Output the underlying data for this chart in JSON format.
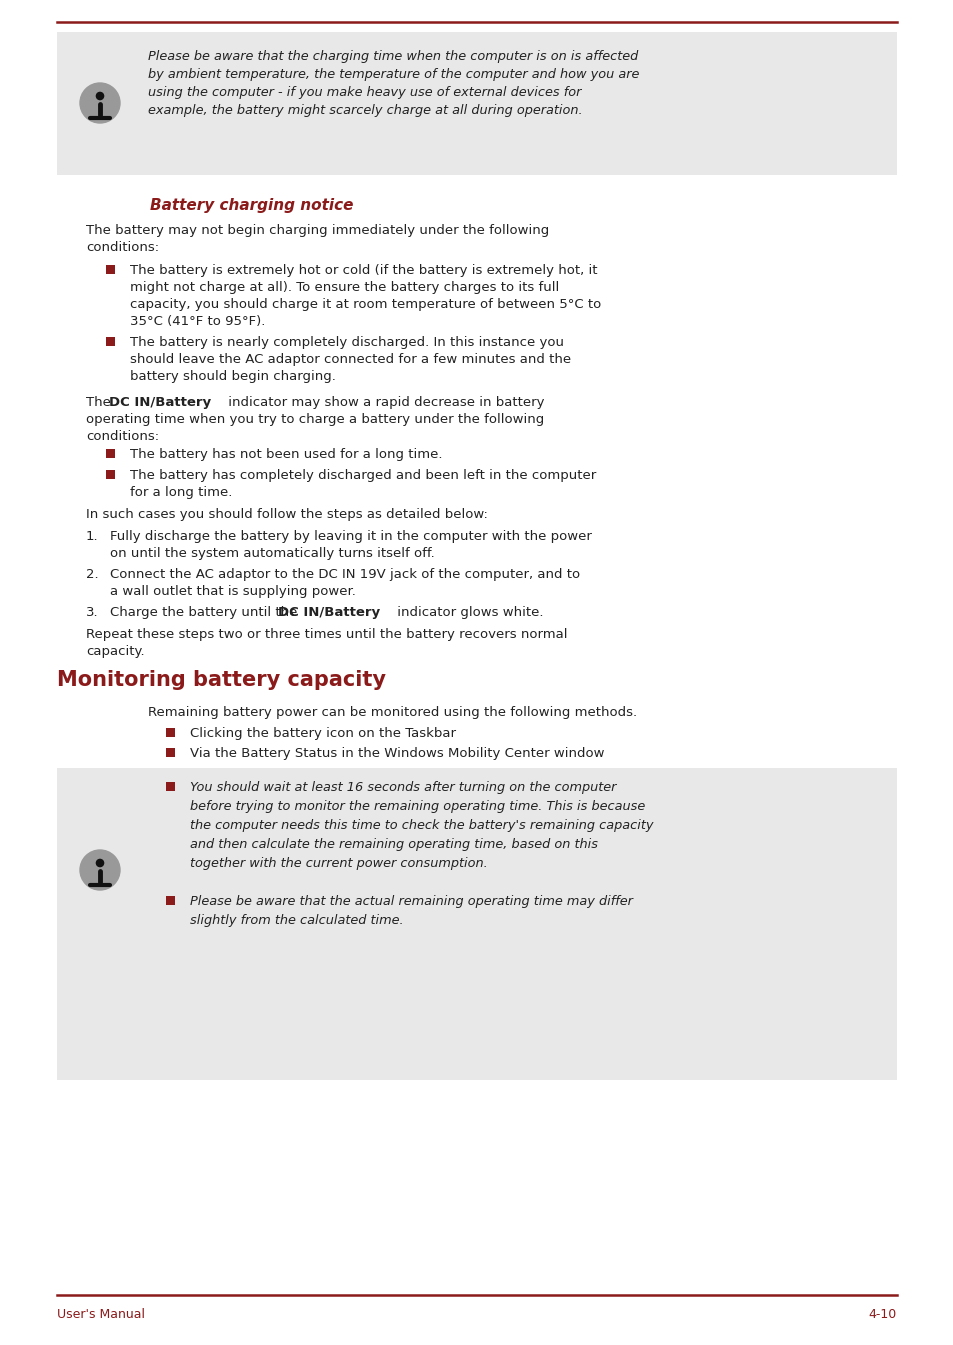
{
  "bg_color": "#ffffff",
  "top_line_color": "#8b1a1a",
  "footer_line_color": "#8b1a1a",
  "footer_left": "User's Manual",
  "footer_right": "4-10",
  "footer_color": "#8b1a1a",
  "section_title": "Battery charging notice",
  "section_title_color": "#8b1a1a",
  "main_section_title": "Monitoring battery capacity",
  "main_section_title_color": "#8b1a1a",
  "bullet_color": "#8b1a1a",
  "text_color": "#222222",
  "info_box_bg": "#e8e8e8",
  "info_icon_color": "#999999",
  "top_note_lines": [
    "Please be aware that the charging time when the computer is on is affected",
    "by ambient temperature, the temperature of the computer and how you are",
    "using the computer - if you make heavy use of external devices for",
    "example, the battery might scarcely charge at all during operation."
  ],
  "bullet1_lines": [
    "The battery is extremely hot or cold (if the battery is extremely hot, it",
    "might not charge at all). To ensure the battery charges to its full",
    "capacity, you should charge it at room temperature of between 5°C to",
    "35°C (41°F to 95°F)."
  ],
  "bullet2_lines": [
    "The battery is nearly completely discharged. In this instance you",
    "should leave the AC adaptor connected for a few minutes and the",
    "battery should begin charging."
  ],
  "bullet3": "The battery has not been used for a long time.",
  "bullet4_lines": [
    "The battery has completely discharged and been left in the computer",
    "for a long time."
  ],
  "numbered1_lines": [
    "Fully discharge the battery by leaving it in the computer with the power",
    "on until the system automatically turns itself off."
  ],
  "numbered2_lines": [
    "Connect the AC adaptor to the DC IN 19V jack of the computer, and to",
    "a wall outlet that is supplying power."
  ],
  "monitoring_bullet1": "Clicking the battery icon on the Taskbar",
  "monitoring_bullet2": "Via the Battery Status in the Windows Mobility Center window",
  "info_note1_lines": [
    "You should wait at least 16 seconds after turning on the computer",
    "before trying to monitor the remaining operating time. This is because",
    "the computer needs this time to check the battery's remaining capacity",
    "and then calculate the remaining operating time, based on this",
    "together with the current power consumption."
  ],
  "info_note2_lines": [
    "Please be aware that the actual remaining operating time may differ",
    "slightly from the calculated time."
  ]
}
